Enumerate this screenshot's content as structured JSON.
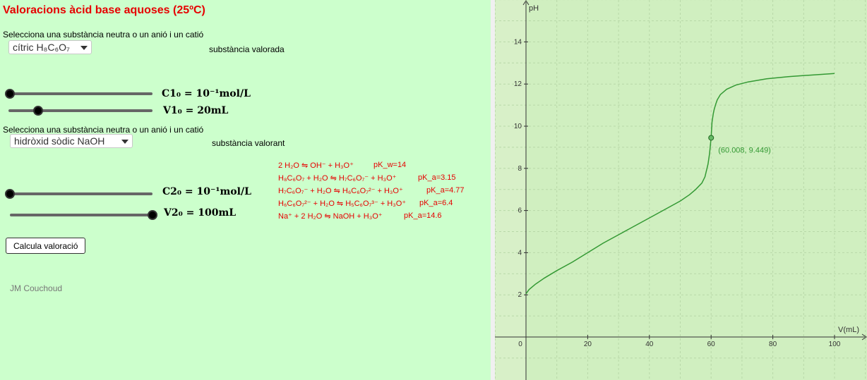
{
  "title": "Valoracions àcid base aquoses (25ºC)",
  "titrand": {
    "prompt": "Selecciona una substància neutra o un anió i un catió",
    "selected": "cítric H₈C₆O₇",
    "role": "substància valorada",
    "c_label": "C1₀ = 10⁻¹mol/L",
    "v_label": "V1₀ = 20mL",
    "c_slider_value": 0,
    "v_slider_value": 0.2
  },
  "titrant": {
    "prompt": "Selecciona una substància neutra o un anió i un catió",
    "selected": "hidròxid sòdic NaOH",
    "role": "substància valorant",
    "c_label": "C2₀ = 10⁻¹mol/L",
    "v_label": "V2₀ = 100mL",
    "c_slider_value": 0,
    "v_slider_value": 1
  },
  "equilibria": [
    {
      "reaction": "2 H₂O ⇋ OH⁻ + H₃O⁺",
      "constant": "pK_w=14"
    },
    {
      "reaction": "H₈C₆O₇ + H₂O ⇋ H₇C₆O₇⁻ + H₃O⁺",
      "constant": "pK_a=3.15"
    },
    {
      "reaction": "H₇C₆O₇⁻ + H₂O ⇋ H₆C₆O₇²⁻ + H₃O⁺",
      "constant": "pK_a=4.77"
    },
    {
      "reaction": "H₆C₆O₇²⁻ + H₂O ⇋ H₅C₆O₇³⁻ + H₃O⁺",
      "constant": "pK_a=6.4"
    },
    {
      "reaction": "Na⁺ + 2 H₂O ⇋ NaOH + H₃O⁺",
      "constant": "pK_a=14.6"
    }
  ],
  "calculate_button": "Calcula valoració",
  "author": "JM Couchoud",
  "colors": {
    "title": "#e60000",
    "equations": "#e60000",
    "panel_bg": "#ccffcc",
    "graph_bg": "#d8f0c8",
    "curve": "#339933",
    "point_label": "#339933"
  },
  "chart_data": {
    "type": "line",
    "xlabel": "V(mL)",
    "ylabel": "pH",
    "xlim": [
      0,
      100
    ],
    "ylim": [
      0,
      14
    ],
    "x_ticks": [
      0,
      20,
      40,
      60,
      80,
      100
    ],
    "y_ticks": [
      2,
      4,
      6,
      8,
      10,
      12,
      14
    ],
    "grid": true,
    "series": [
      {
        "x": [
          0,
          1,
          3,
          6,
          10,
          15,
          20,
          25,
          30,
          35,
          40,
          45,
          50,
          53,
          55,
          57,
          58,
          59,
          59.5,
          60,
          60.3,
          60.7,
          61,
          61.5,
          62,
          63,
          65,
          68,
          72,
          78,
          85,
          92,
          100
        ],
        "y": [
          2.05,
          2.25,
          2.5,
          2.8,
          3.15,
          3.55,
          4.0,
          4.45,
          4.85,
          5.25,
          5.65,
          6.05,
          6.45,
          6.75,
          7.0,
          7.3,
          7.6,
          8.2,
          8.7,
          9.449,
          10.2,
          10.6,
          10.8,
          11.05,
          11.25,
          11.5,
          11.75,
          11.95,
          12.1,
          12.25,
          12.35,
          12.42,
          12.5
        ]
      }
    ],
    "point": {
      "x": 60.008,
      "y": 9.449,
      "label": "(60.008, 9.449)"
    }
  }
}
